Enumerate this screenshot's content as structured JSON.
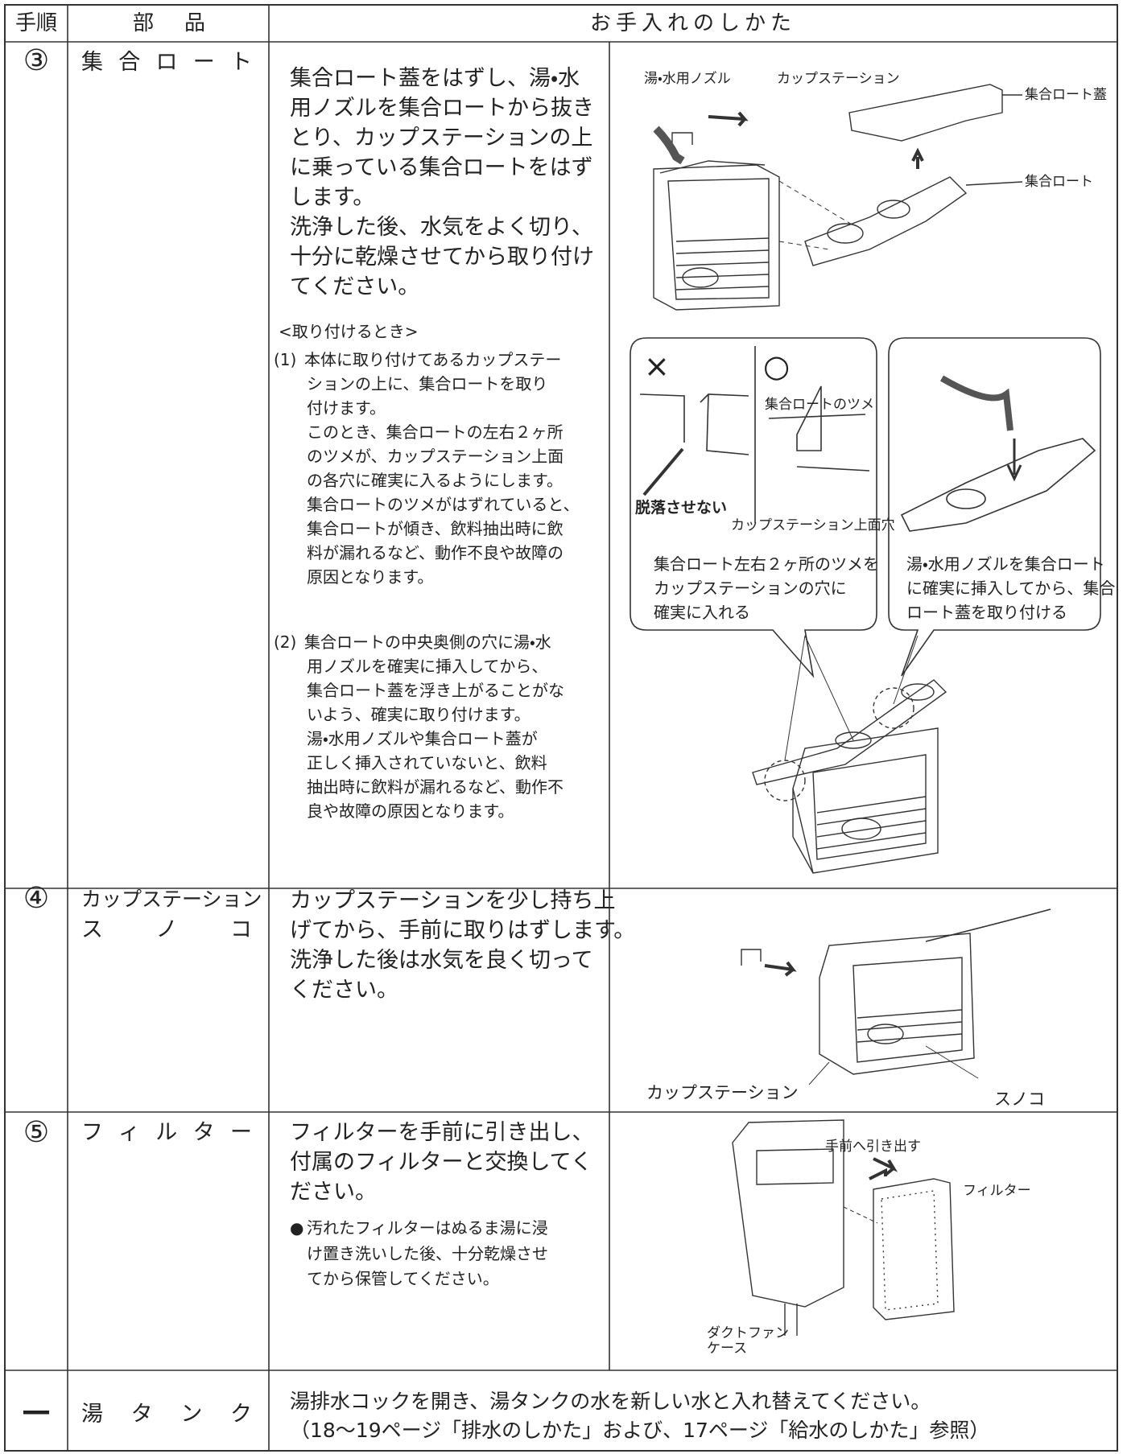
{
  "header": {
    "step": "手順",
    "part": "部品",
    "care": "お手入れのしかた"
  },
  "rows": [
    {
      "step": "③",
      "part": [
        "集合ロート"
      ],
      "text": [
        "集合ロート蓋をはずし、湯・水",
        "用ノズルを集合ロートから抜き",
        "とり、カップステーションの上",
        "に乗っている集合ロートをはず",
        "します。",
        "洗浄した後、水気をよく切り、",
        "十分に乾燥させてから取り付け",
        "てください。"
      ],
      "subheading": "<取り付けるとき>",
      "items": [
        {
          "marker": "(1)",
          "lines": [
            "本体に取り付けてあるカップステー",
            "ションの上に、集合ロートを取り",
            "付けます。",
            "このとき、集合ロートの左右２ヶ所",
            "のツメが、カップステーション上面",
            "の各穴に確実に入るようにします。",
            "集合ロートのツメがはずれていると、",
            "集合ロートが傾き、飲料抽出時に飲",
            "料が漏れるなど、動作不良や故障の",
            "原因となります。"
          ]
        },
        {
          "marker": "(2)",
          "lines": [
            "集合ロートの中央奥側の穴に湯・水",
            "用ノズルを確実に挿入してから、",
            "集合ロート蓋を浮き上がることがな",
            "いよう、確実に取り付けます。",
            "湯・水用ノズルや集合ロート蓋が",
            "正しく挿入されていないと、飲料",
            "抽出時に飲料が漏れるなど、動作不",
            "良や故障の原因となります。"
          ]
        }
      ],
      "figure_labels": [
        "湯・水用ノズル",
        "カップステーション",
        "集合ロート蓋",
        "集合ロート"
      ],
      "callout_left": {
        "wrong": "×",
        "right": "○",
        "claw": "集合ロートのツメ",
        "warning": "脱落させない",
        "hole": "カップステーション上面穴",
        "caption": [
          "集合ロート左右２ヶ所のツメを",
          "カップステーションの穴に",
          "確実に入れる"
        ]
      },
      "callout_right": {
        "caption": [
          "湯・水用ノズルを集合ロート",
          "に確実に挿入してから、集合",
          "ロート蓋を取り付ける"
        ]
      }
    },
    {
      "step": "④",
      "part": [
        "カップステーション",
        "スノコ"
      ],
      "text": [
        "カップステーションを少し持ち上",
        "げてから、手前に取りはずします。",
        "洗浄した後は水気を良く切って",
        "ください。"
      ],
      "figure_labels": [
        "カップステーション",
        "スノコ"
      ]
    },
    {
      "step": "⑤",
      "part": [
        "フィルター"
      ],
      "text": [
        "フィルターを手前に引き出し、",
        "付属のフィルターと交換してく",
        "ださい。"
      ],
      "note": {
        "marker": "●",
        "lines": [
          "汚れたフィルターはぬるま湯に浸",
          "け置き洗いした後、十分乾燥させ",
          "てから保管してください。"
        ]
      },
      "figure_labels": [
        "手前へ引き出す",
        "フィルター",
        "ダクトファン",
        "ケース"
      ]
    },
    {
      "step": "—",
      "part": [
        "湯タンク"
      ],
      "text": [
        "湯排水コックを開き、湯タンクの水を新しい水と入れ替えてください。",
        "（18〜19ページ「排水のしかた」および、17ページ「給水のしかた」参照）"
      ]
    }
  ]
}
